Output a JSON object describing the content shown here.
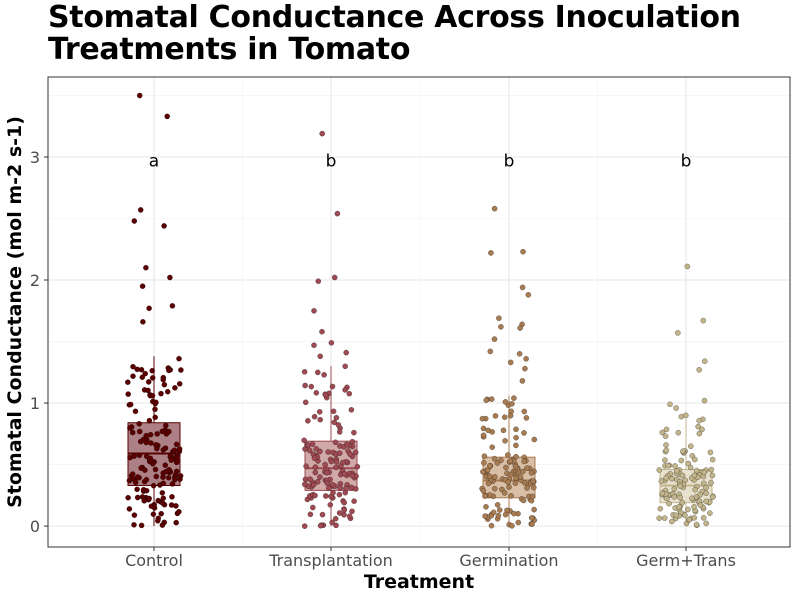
{
  "chart_data": {
    "type": "box+jitter",
    "title": "Stomatal Conductance Across Inoculation\nTreatments in Tomato",
    "xlabel": "Treatment",
    "ylabel": "Stomatal Conductance (mol m-2 s-1)",
    "ylim": [
      -0.17,
      3.65
    ],
    "yticks": [
      0,
      1,
      2,
      3
    ],
    "grid": true,
    "categories": [
      "Control",
      "Transplantation",
      "Germination",
      "Germ+Trans"
    ],
    "colors": [
      "#5a0000",
      "#9e4a52",
      "#a87c52",
      "#c2b58c"
    ],
    "box_fills": [
      "#9e6a6e",
      "#c99a9a",
      "#d4b498",
      "#e3dcc6"
    ],
    "letters": [
      "a",
      "b",
      "b",
      "b"
    ],
    "letter_y": 2.97,
    "boxes": [
      {
        "whisker_low": 0.0,
        "q1": 0.33,
        "median": 0.59,
        "q3": 0.84,
        "whisker_high": 1.38
      },
      {
        "whisker_low": 0.0,
        "q1": 0.29,
        "median": 0.47,
        "q3": 0.69,
        "whisker_high": 1.3
      },
      {
        "whisker_low": 0.0,
        "q1": 0.23,
        "median": 0.37,
        "q3": 0.56,
        "whisker_high": 1.06
      },
      {
        "whisker_low": 0.0,
        "q1": 0.19,
        "median": 0.33,
        "q3": 0.46,
        "whisker_high": 0.87
      }
    ],
    "outliers": [
      [
        3.5,
        3.33,
        2.57,
        2.48,
        2.44,
        2.1,
        2.02,
        1.95,
        1.79,
        1.77,
        1.66
      ],
      [
        3.19,
        2.54,
        2.02,
        1.99,
        1.75,
        1.58,
        1.49,
        1.47,
        1.41,
        1.38
      ],
      [
        2.58,
        2.23,
        2.22,
        1.94,
        1.88,
        1.69,
        1.64,
        1.62,
        1.61,
        1.52,
        1.42,
        1.4,
        1.36,
        1.33,
        1.28,
        1.18
      ],
      [
        2.11,
        1.67,
        1.57,
        1.34,
        1.27,
        1.02,
        0.99,
        0.96,
        0.9,
        0.89
      ]
    ],
    "n_inner_points": [
      150,
      140,
      130,
      130
    ]
  }
}
